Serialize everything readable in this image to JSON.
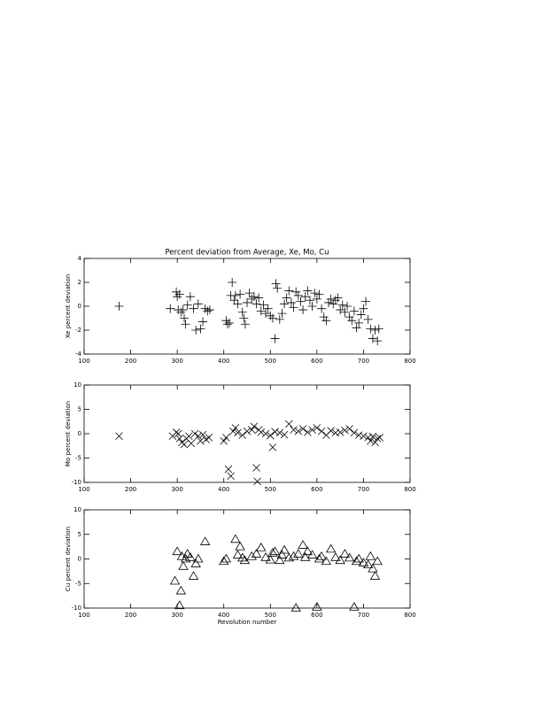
{
  "chart_data": [
    {
      "type": "scatter",
      "title": "Percent deviation from Average, Xe, Mo, Cu",
      "y_label": "Xe percent deviation",
      "marker": "plus",
      "color": "#000000",
      "x": [
        175,
        285,
        298,
        300,
        302,
        305,
        308,
        312,
        315,
        318,
        322,
        328,
        335,
        340,
        345,
        350,
        355,
        360,
        365,
        370,
        405,
        408,
        412,
        415,
        418,
        422,
        425,
        430,
        435,
        440,
        443,
        446,
        450,
        455,
        460,
        465,
        470,
        475,
        480,
        485,
        490,
        495,
        500,
        505,
        510,
        512,
        515,
        520,
        525,
        530,
        535,
        540,
        545,
        550,
        555,
        560,
        565,
        570,
        575,
        580,
        585,
        590,
        595,
        600,
        605,
        610,
        615,
        620,
        625,
        630,
        635,
        640,
        645,
        650,
        655,
        660,
        665,
        670,
        675,
        680,
        685,
        690,
        695,
        700,
        705,
        710,
        715,
        720,
        725,
        730,
        733
      ],
      "values": [
        0,
        -0.2,
        1.2,
        0.8,
        -0.3,
        1.0,
        -0.5,
        -0.3,
        -1.0,
        -1.5,
        0.1,
        0.8,
        -0.2,
        -2.0,
        0.2,
        -1.9,
        -1.3,
        -0.2,
        -0.4,
        -0.3,
        -1.2,
        -1.5,
        -1.4,
        0.9,
        2.0,
        0.5,
        0.9,
        0.2,
        1.0,
        -0.5,
        -1.0,
        -1.5,
        0.3,
        1.1,
        0.6,
        0.8,
        0.2,
        0.7,
        -0.4,
        0.1,
        -0.6,
        -0.2,
        -0.8,
        -1.0,
        -2.7,
        1.9,
        1.5,
        -1.1,
        -0.6,
        0.2,
        0.7,
        1.3,
        0.3,
        -0.1,
        1.2,
        0.9,
        0.4,
        -0.3,
        0.8,
        1.3,
        0.5,
        0.0,
        1.1,
        0.6,
        1.0,
        -0.2,
        -0.9,
        -1.2,
        0.3,
        0.6,
        0.2,
        0.5,
        0.7,
        -0.3,
        0.1,
        -0.5,
        0.0,
        -0.9,
        -1.2,
        -0.4,
        -1.8,
        -1.4,
        -0.7,
        -0.2,
        0.4,
        -1.1,
        -1.9,
        -2.7,
        -2.0,
        -2.9,
        -1.9
      ],
      "xlim": [
        100,
        800
      ],
      "xticks": [
        100,
        200,
        300,
        400,
        500,
        600,
        700,
        800
      ],
      "ylim": [
        -4,
        4
      ],
      "yticks": [
        -4,
        -2,
        0,
        2,
        4
      ]
    },
    {
      "type": "scatter",
      "y_label": "Mo percent deviation",
      "marker": "cross",
      "color": "#000000",
      "x": [
        175,
        290,
        298,
        302,
        305,
        310,
        315,
        320,
        325,
        330,
        338,
        345,
        350,
        355,
        362,
        368,
        400,
        405,
        410,
        415,
        420,
        425,
        430,
        440,
        450,
        460,
        465,
        470,
        472,
        475,
        480,
        490,
        500,
        505,
        510,
        520,
        530,
        540,
        550,
        560,
        570,
        580,
        590,
        600,
        610,
        620,
        630,
        640,
        650,
        660,
        670,
        680,
        690,
        700,
        710,
        715,
        720,
        725,
        730,
        735
      ],
      "values": [
        -0.5,
        -0.5,
        0.3,
        0.0,
        -1.0,
        -1.8,
        -2.2,
        -1.0,
        -0.5,
        -2.0,
        0.0,
        -0.5,
        -1.5,
        -0.2,
        -1.2,
        -0.8,
        -1.5,
        -0.8,
        -7.3,
        -8.7,
        0.5,
        1.2,
        0.2,
        -0.3,
        0.5,
        0.8,
        1.5,
        -7.0,
        -9.8,
        0.8,
        0.3,
        0.0,
        -0.4,
        -2.8,
        0.4,
        0.2,
        -0.2,
        2.0,
        0.8,
        0.5,
        1.0,
        0.3,
        0.8,
        1.2,
        0.5,
        -0.3,
        0.6,
        0.2,
        0.3,
        0.7,
        1.0,
        0.2,
        -0.3,
        -0.5,
        -0.8,
        -1.5,
        -0.6,
        -1.8,
        -1.0,
        -0.8
      ],
      "xlim": [
        100,
        800
      ],
      "xticks": [
        100,
        200,
        300,
        400,
        500,
        600,
        700,
        800
      ],
      "ylim": [
        -10,
        10
      ],
      "yticks": [
        -10,
        -5,
        0,
        5,
        10
      ]
    },
    {
      "type": "scatter",
      "x_label": "Revolution number",
      "y_label": "Cu percent deviation",
      "marker": "triangle",
      "color": "#000000",
      "x": [
        295,
        300,
        305,
        308,
        310,
        313,
        318,
        322,
        328,
        335,
        340,
        345,
        360,
        400,
        405,
        425,
        430,
        435,
        440,
        445,
        460,
        470,
        480,
        490,
        500,
        505,
        510,
        520,
        525,
        530,
        540,
        550,
        555,
        560,
        570,
        575,
        580,
        590,
        600,
        605,
        610,
        620,
        630,
        640,
        650,
        660,
        670,
        680,
        685,
        690,
        700,
        710,
        715,
        720,
        725,
        730
      ],
      "values": [
        -4.5,
        1.5,
        -9.5,
        -6.5,
        0.5,
        -1.5,
        0.0,
        1.0,
        0.3,
        -3.5,
        -1.0,
        0.0,
        3.5,
        -0.5,
        0.0,
        4.0,
        0.8,
        2.5,
        0.2,
        -0.3,
        0.5,
        1.0,
        2.3,
        0.3,
        -0.2,
        1.2,
        1.5,
        -0.3,
        0.8,
        1.8,
        0.2,
        0.5,
        -10.0,
        1.0,
        2.8,
        0.3,
        1.5,
        0.8,
        -9.8,
        0.0,
        0.5,
        -0.5,
        2.0,
        0.3,
        -0.3,
        1.0,
        0.2,
        -9.8,
        -0.5,
        0.0,
        -0.8,
        -1.2,
        0.5,
        -2.0,
        -3.5,
        -0.5
      ],
      "xlim": [
        100,
        800
      ],
      "xticks": [
        100,
        200,
        300,
        400,
        500,
        600,
        700,
        800
      ],
      "ylim": [
        -10,
        10
      ],
      "yticks": [
        -10,
        -5,
        0,
        5,
        10
      ]
    }
  ]
}
